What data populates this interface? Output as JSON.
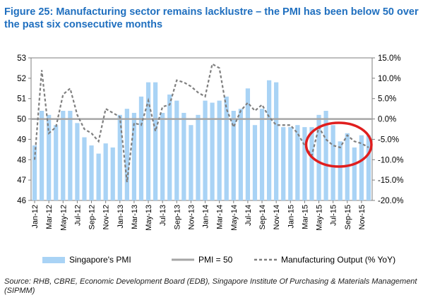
{
  "title": "Figure 25: Manufacturing sector remains lacklustre – the PMI has been below 50 over the past six consecutive months",
  "source": "Source: RHB, CBRE, Economic Development Board (EDB), Singapore Institute Of Purchasing & Materials Management (SIPMM)",
  "colors": {
    "title": "#1f6fbf",
    "bar": "#a9d3f5",
    "pmi50": "#a6a6a6",
    "output": "#7f7f7f",
    "highlight": "#e01e1e"
  },
  "chart_data": {
    "type": "bar",
    "categories": [
      "Jan-12",
      "Feb-12",
      "Mar-12",
      "Apr-12",
      "May-12",
      "Jun-12",
      "Jul-12",
      "Aug-12",
      "Sep-12",
      "Oct-12",
      "Nov-12",
      "Dec-12",
      "Jan-13",
      "Feb-13",
      "Mar-13",
      "Apr-13",
      "May-13",
      "Jun-13",
      "Jul-13",
      "Aug-13",
      "Sep-13",
      "Oct-13",
      "Nov-13",
      "Dec-13",
      "Jan-14",
      "Feb-14",
      "Mar-14",
      "Apr-14",
      "May-14",
      "Jun-14",
      "Jul-14",
      "Aug-14",
      "Sep-14",
      "Oct-14",
      "Nov-14",
      "Dec-14",
      "Jan-15",
      "Feb-15",
      "Mar-15",
      "Apr-15",
      "May-15",
      "Jun-15",
      "Jul-15",
      "Aug-15",
      "Sep-15",
      "Oct-15",
      "Nov-15",
      "Dec-15"
    ],
    "x_tick_labels": [
      "Jan-12",
      "Mar-12",
      "May-12",
      "Jul-12",
      "Sep-12",
      "Nov-12",
      "Jan-13",
      "Mar-13",
      "May-13",
      "Jul-13",
      "Sep-13",
      "Nov-13",
      "Jan-14",
      "Mar-14",
      "May-14",
      "Jul-14",
      "Sep-14",
      "Nov-14",
      "Jan-15",
      "Mar-15",
      "May-15",
      "Jul-15",
      "Sep-15",
      "Nov-15"
    ],
    "series": [
      {
        "name": "Singapore's PMI",
        "type": "bar",
        "axis": "left",
        "values": [
          48.7,
          50.4,
          50.2,
          49.7,
          50.4,
          50.4,
          49.8,
          49.1,
          48.7,
          48.3,
          48.8,
          48.6,
          50.2,
          50.5,
          50.3,
          51.1,
          51.8,
          51.8,
          50.3,
          51.2,
          50.9,
          50.3,
          49.7,
          50.2,
          50.9,
          50.8,
          50.9,
          51.1,
          50.4,
          50.5,
          51.5,
          49.7,
          50.5,
          51.9,
          51.8,
          49.6,
          49.6,
          49.7,
          49.6,
          49.6,
          50.2,
          50.4,
          49.7,
          48.9,
          49.3,
          48.6,
          49.2,
          49.2
        ]
      },
      {
        "name": "PMI = 50",
        "type": "line",
        "axis": "left",
        "values": [
          50,
          50,
          50,
          50,
          50,
          50,
          50,
          50,
          50,
          50,
          50,
          50,
          50,
          50,
          50,
          50,
          50,
          50,
          50,
          50,
          50,
          50,
          50,
          50,
          50,
          50,
          50,
          50,
          50,
          50,
          50,
          50,
          50,
          50,
          50,
          50,
          50,
          50,
          50,
          50,
          50,
          50,
          50,
          50,
          50,
          50,
          50,
          50
        ]
      },
      {
        "name": "Manufacturing Output (% YoY)",
        "type": "line",
        "style": "dashed",
        "axis": "right",
        "values": [
          -10.0,
          12.0,
          -3.5,
          -2.0,
          6.0,
          7.5,
          1.0,
          -2.5,
          -3.5,
          -5.5,
          2.5,
          1.5,
          0.5,
          -15.5,
          -1.0,
          -1.5,
          4.5,
          -3.0,
          3.0,
          3.5,
          9.5,
          9.0,
          8.0,
          6.5,
          5.5,
          13.5,
          12.5,
          2.5,
          -2.0,
          2.0,
          4.0,
          2.0,
          3.5,
          0.5,
          -1.5,
          -1.5,
          -1.5,
          -3.5,
          -6.5,
          -9.0,
          -2.0,
          -5.0,
          -6.5,
          -7.0,
          -4.0,
          -5.5,
          -6.0,
          -7.0
        ]
      }
    ],
    "y_left": {
      "min": 46,
      "max": 53,
      "ticks": [
        "46",
        "47",
        "48",
        "49",
        "50",
        "51",
        "52",
        "53"
      ]
    },
    "y_right": {
      "min": -20,
      "max": 15,
      "ticks": [
        "-20.0%",
        "-15.0%",
        "-10.0%",
        "-5.0%",
        "0.0%",
        "5.0%",
        "10.0%",
        "15.0%"
      ]
    },
    "legend_position": "bottom",
    "annotation": "red ellipse highlighting Apr-15 to Dec-15"
  }
}
